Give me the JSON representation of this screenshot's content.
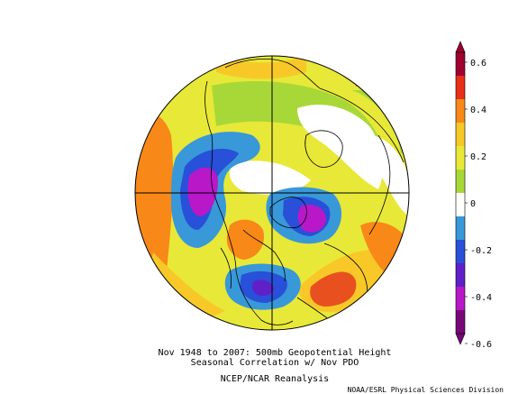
{
  "captions": {
    "line1": "Nov 1948 to 2007: 500mb Geopotential Height",
    "line2": "Seasonal Correlation w/ Nov PDO",
    "line3": "NCEP/NCAR Reanalysis"
  },
  "credit": "NOAA/ESRL Physical Sciences Division",
  "colorbar": {
    "labels": [
      "0.6",
      "0.4",
      "0.2",
      "0",
      "-0.2",
      "-0.4",
      "-0.6"
    ],
    "colors": [
      "#a00030",
      "#e83018",
      "#f88818",
      "#f8c828",
      "#e8e838",
      "#a8d838",
      "#ffffff",
      "#3898d8",
      "#2850d8",
      "#6020c8",
      "#b818c8",
      "#780878"
    ]
  },
  "map": {
    "projection": "north-polar-stereographic",
    "highlights": [
      {
        "name": "gulf-of-alaska-negative",
        "value": "-0.5"
      },
      {
        "name": "western-north-america-positive",
        "value": "0.3"
      },
      {
        "name": "eastern-north-america-negative",
        "value": "-0.4"
      },
      {
        "name": "north-atlantic-positive",
        "value": "0.5"
      }
    ]
  }
}
